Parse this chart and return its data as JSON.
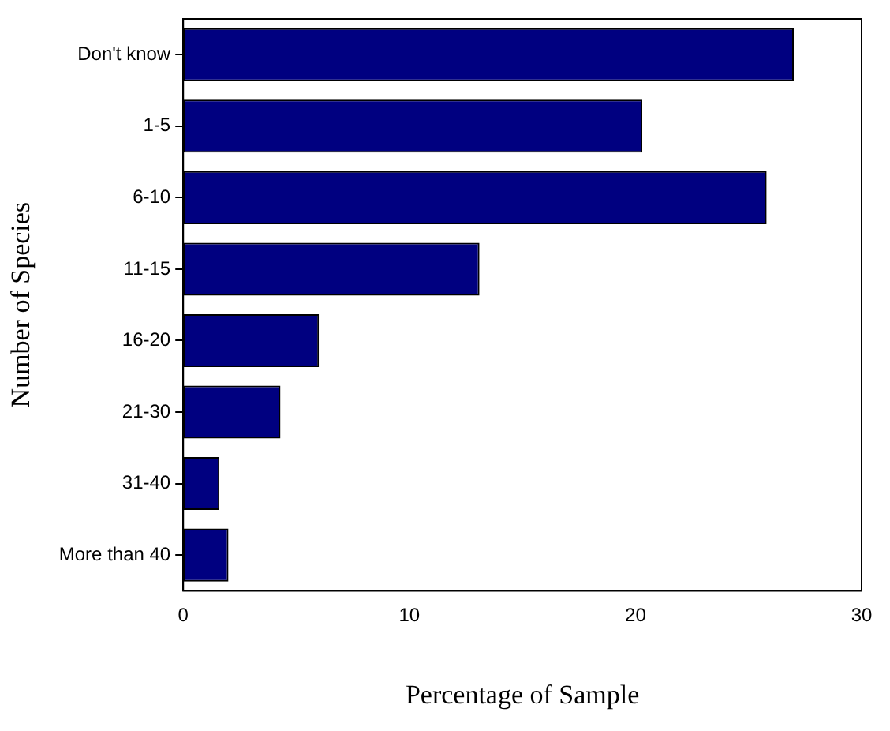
{
  "chart_data": {
    "type": "bar",
    "orientation": "horizontal",
    "xlabel": "Percentage of Sample",
    "ylabel": "Number of Species",
    "categories": [
      "Don't know",
      "1-5",
      "6-10",
      "11-15",
      "16-20",
      "21-30",
      "31-40",
      "More than 40"
    ],
    "values": [
      27,
      20.3,
      25.8,
      13.1,
      6,
      4.3,
      1.6,
      2
    ],
    "color": "#000080",
    "xlim": [
      0,
      30
    ],
    "xticks": [
      0,
      10,
      20,
      30
    ],
    "grid": false,
    "legend": false
  }
}
